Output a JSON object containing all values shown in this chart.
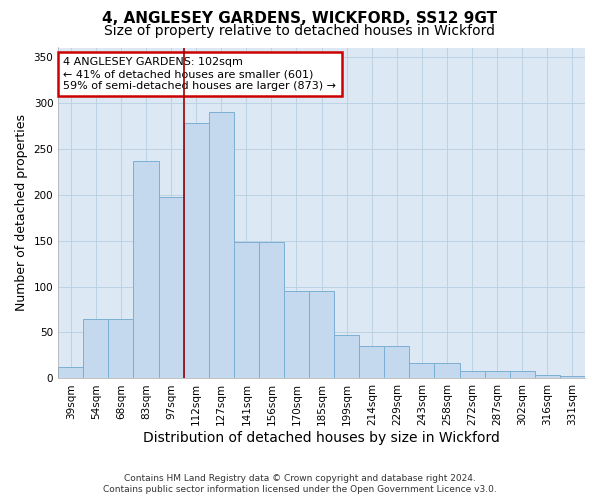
{
  "title1": "4, ANGLESEY GARDENS, WICKFORD, SS12 9GT",
  "title2": "Size of property relative to detached houses in Wickford",
  "xlabel": "Distribution of detached houses by size in Wickford",
  "ylabel": "Number of detached properties",
  "categories": [
    "39sqm",
    "54sqm",
    "68sqm",
    "83sqm",
    "97sqm",
    "112sqm",
    "127sqm",
    "141sqm",
    "156sqm",
    "170sqm",
    "185sqm",
    "199sqm",
    "214sqm",
    "229sqm",
    "243sqm",
    "258sqm",
    "272sqm",
    "287sqm",
    "302sqm",
    "316sqm",
    "331sqm"
  ],
  "values": [
    12,
    65,
    65,
    236,
    197,
    278,
    290,
    148,
    148,
    95,
    95,
    47,
    35,
    35,
    17,
    17,
    8,
    8,
    8,
    4,
    3
  ],
  "bar_color": "#c5d9ee",
  "bar_edge_color": "#7bafd4",
  "vline_x": 4.5,
  "vline_color": "#9b0000",
  "annotation_text": "4 ANGLESEY GARDENS: 102sqm\n← 41% of detached houses are smaller (601)\n59% of semi-detached houses are larger (873) →",
  "annotation_box_edge": "#cc0000",
  "ylim": [
    0,
    360
  ],
  "yticks": [
    0,
    50,
    100,
    150,
    200,
    250,
    300,
    350
  ],
  "footer1": "Contains HM Land Registry data © Crown copyright and database right 2024.",
  "footer2": "Contains public sector information licensed under the Open Government Licence v3.0.",
  "bg_color": "#ffffff",
  "plot_bg_color": "#dce8f4",
  "grid_color": "#b8cfe0",
  "title1_fontsize": 11,
  "title2_fontsize": 10,
  "axis_label_fontsize": 9,
  "tick_fontsize": 7.5,
  "footer_fontsize": 6.5
}
